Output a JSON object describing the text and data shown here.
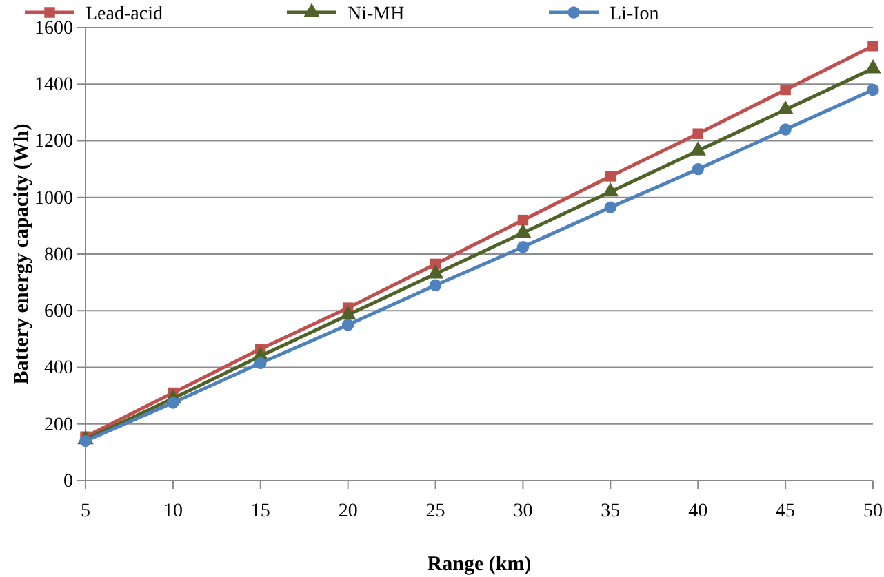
{
  "chart_data": {
    "type": "line",
    "xlabel": "Range (km)",
    "ylabel": "Battery energy capacity (Wh)",
    "x": [
      5,
      10,
      15,
      20,
      25,
      30,
      35,
      40,
      45,
      50
    ],
    "xlim": [
      5,
      50
    ],
    "xticks": [
      5,
      10,
      15,
      20,
      25,
      30,
      35,
      40,
      45,
      50
    ],
    "ylim": [
      0,
      1600
    ],
    "yticks": [
      0,
      200,
      400,
      600,
      800,
      1000,
      1200,
      1400,
      1600
    ],
    "grid": "y",
    "legend": "top",
    "series": [
      {
        "name": "Lead-acid",
        "color": "#c0504d",
        "marker": "square",
        "values": [
          155,
          310,
          465,
          610,
          765,
          920,
          1075,
          1225,
          1380,
          1535
        ]
      },
      {
        "name": "Ni-MH",
        "color": "#4f6228",
        "marker": "triangle",
        "values": [
          145,
          290,
          440,
          585,
          730,
          875,
          1020,
          1165,
          1310,
          1455
        ]
      },
      {
        "name": "Li-Ion",
        "color": "#4f81bd",
        "marker": "circle",
        "values": [
          140,
          275,
          415,
          550,
          690,
          825,
          965,
          1100,
          1240,
          1380
        ]
      }
    ]
  }
}
